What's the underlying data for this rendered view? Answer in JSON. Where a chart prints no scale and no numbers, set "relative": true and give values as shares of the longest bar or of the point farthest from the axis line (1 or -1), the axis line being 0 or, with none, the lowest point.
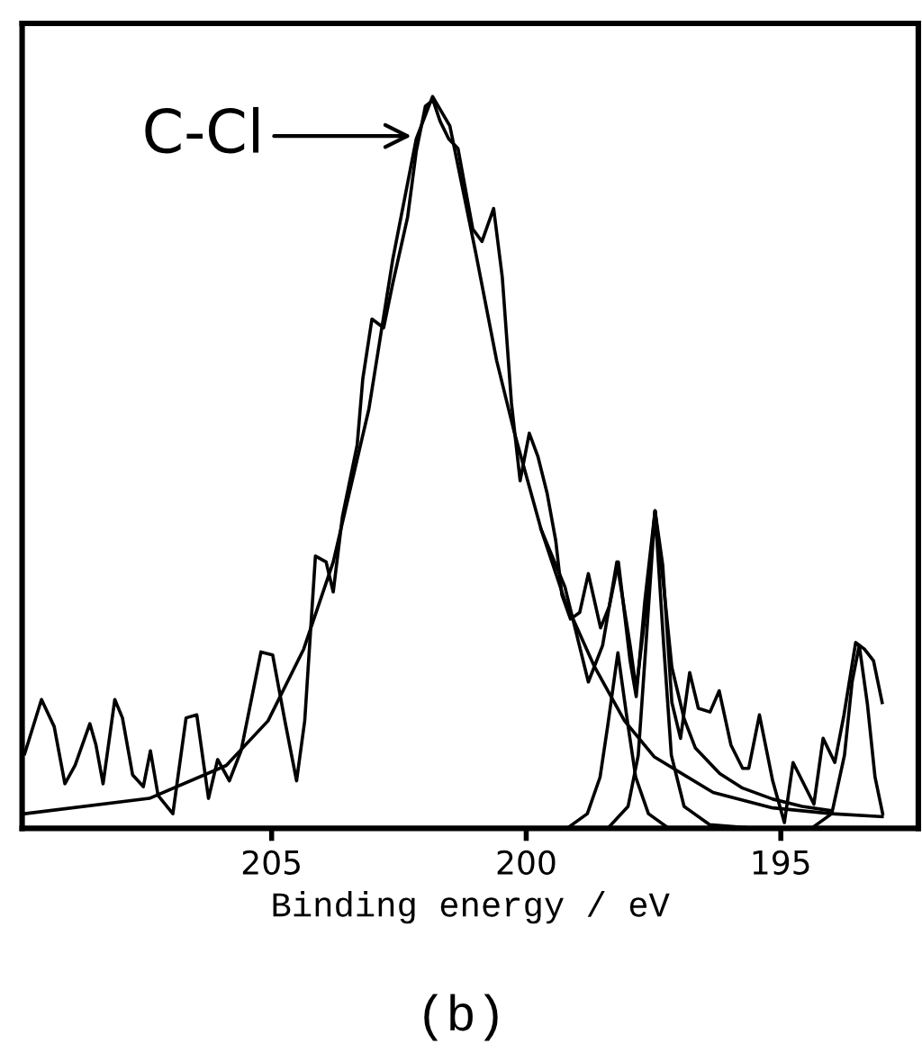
{
  "chart_data": {
    "type": "line",
    "title": "(b)",
    "xlabel": "Binding energy / eV",
    "relative": true,
    "xlim": [
      209.9,
      192.3
    ],
    "xticks": [
      205,
      200,
      195
    ],
    "grid": false,
    "annotations": [
      "C-Cl"
    ],
    "series": [
      {
        "color": "#000000",
        "x": [
          209.85,
          209.52,
          209.27,
          209.06,
          208.86,
          208.57,
          208.45,
          208.31,
          208.08,
          207.93,
          207.73,
          207.52,
          207.38,
          207.23,
          206.94,
          206.68,
          206.47,
          206.24,
          206.06,
          205.83,
          205.6,
          205.21,
          204.98,
          204.74,
          204.51,
          204.35,
          204.14,
          203.93,
          203.79,
          203.61,
          203.32,
          203.21,
          203.03,
          202.8,
          202.62,
          202.33,
          202.16,
          201.98,
          201.83,
          201.69,
          201.52,
          201.34,
          201.05,
          200.87,
          200.64,
          200.47,
          200.29,
          200.12,
          199.94,
          199.77,
          199.59,
          199.42,
          199.3,
          199.13,
          198.95,
          198.78,
          198.54,
          198.37,
          198.19,
          197.96,
          197.84,
          197.67,
          197.47,
          197.32,
          197.14,
          196.97,
          196.79,
          196.62,
          196.39,
          196.21,
          195.98,
          195.75,
          195.63,
          195.42,
          195.16,
          194.93,
          194.76,
          194.58,
          194.35,
          194.17,
          193.94,
          193.76,
          193.53,
          193.36,
          193.18,
          193.01
        ],
        "values": [
          0.102,
          0.176,
          0.139,
          0.061,
          0.086,
          0.143,
          0.114,
          0.061,
          0.176,
          0.151,
          0.073,
          0.057,
          0.106,
          0.045,
          0.02,
          0.151,
          0.155,
          0.041,
          0.094,
          0.065,
          0.106,
          0.241,
          0.237,
          0.147,
          0.065,
          0.147,
          0.372,
          0.364,
          0.323,
          0.426,
          0.524,
          0.614,
          0.696,
          0.684,
          0.745,
          0.835,
          0.925,
          0.987,
          0.995,
          0.966,
          0.942,
          0.929,
          0.819,
          0.802,
          0.847,
          0.753,
          0.581,
          0.475,
          0.54,
          0.508,
          0.458,
          0.393,
          0.319,
          0.286,
          0.295,
          0.348,
          0.274,
          0.303,
          0.364,
          0.229,
          0.18,
          0.311,
          0.434,
          0.36,
          0.172,
          0.123,
          0.213,
          0.164,
          0.159,
          0.188,
          0.114,
          0.082,
          0.082,
          0.155,
          0.065,
          0.008,
          0.09,
          0.065,
          0.033,
          0.123,
          0.09,
          0.155,
          0.254,
          0.245,
          0.229,
          0.172
        ]
      },
      {
        "color": "#000000",
        "x": [
          209.85,
          207.4,
          205.89,
          205.07,
          204.37,
          203.79,
          203.09,
          202.62,
          202.16,
          201.84,
          201.5,
          200.99,
          200.58,
          200.23,
          199.71,
          199.24,
          198.66,
          198.07,
          197.49,
          196.33,
          195.16,
          194.0,
          193.01
        ],
        "values": [
          0.02,
          0.041,
          0.086,
          0.147,
          0.245,
          0.364,
          0.573,
          0.778,
          0.942,
          1,
          0.96,
          0.786,
          0.639,
          0.54,
          0.409,
          0.311,
          0.221,
          0.147,
          0.098,
          0.049,
          0.028,
          0.02,
          0.016
        ]
      },
      {
        "color": "#000000",
        "x": [
          199.71,
          199.24,
          198.78,
          198.5,
          198.22,
          197.96,
          197.84,
          197.65,
          197.47,
          197.3,
          197.14,
          196.9,
          196.68,
          196.2,
          195.75,
          195.16,
          194.58,
          194.0
        ],
        "values": [
          0.409,
          0.33,
          0.2,
          0.25,
          0.364,
          0.25,
          0.19,
          0.3,
          0.434,
          0.33,
          0.22,
          0.15,
          0.11,
          0.075,
          0.055,
          0.04,
          0.03,
          0.024
        ]
      },
      {
        "color": "#000000",
        "x": [
          199.2,
          198.8,
          198.55,
          198.4,
          198.2,
          198.0,
          197.85,
          197.6,
          197.2
        ],
        "values": [
          0.0,
          0.02,
          0.07,
          0.14,
          0.24,
          0.14,
          0.07,
          0.02,
          0.0
        ]
      },
      {
        "color": "#000000",
        "x": [
          198.4,
          198.0,
          197.8,
          197.65,
          197.47,
          197.3,
          197.15,
          196.9,
          196.4,
          195.5
        ],
        "values": [
          0.0,
          0.03,
          0.1,
          0.25,
          0.434,
          0.25,
          0.1,
          0.03,
          0.005,
          0.0
        ]
      },
      {
        "color": "#000000",
        "x": [
          194.4,
          194.0,
          193.75,
          193.6,
          193.46,
          193.3,
          193.15,
          193.0
        ],
        "values": [
          0.0,
          0.02,
          0.1,
          0.2,
          0.25,
          0.17,
          0.07,
          0.02
        ]
      }
    ]
  }
}
